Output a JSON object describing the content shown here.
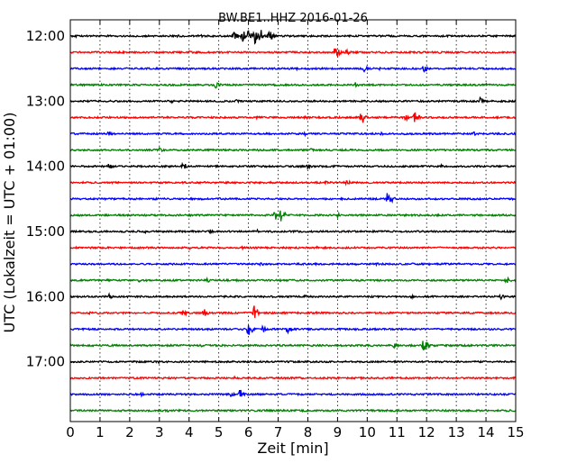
{
  "chart_data": {
    "type": "line",
    "title": "BW.BE1..HHZ 2016-01-26",
    "xlabel": "Zeit  [min]",
    "ylabel": "UTC (Lokalzeit = UTC + 01:00)",
    "xlim": [
      0,
      15
    ],
    "x_ticks": [
      "0",
      "1",
      "2",
      "3",
      "4",
      "5",
      "6",
      "7",
      "8",
      "9",
      "10",
      "11",
      "12",
      "13",
      "14",
      "15"
    ],
    "y_tick_labels": [
      "12:00",
      "13:00",
      "14:00",
      "15:00",
      "16:00",
      "17:00"
    ],
    "grid": true,
    "trace_colors": [
      "#000000",
      "#ff0000",
      "#0000ff",
      "#008000"
    ],
    "traces": [
      {
        "start": "12:00",
        "events": [
          [
            5.5,
            7
          ],
          [
            5.8,
            8
          ],
          [
            6.0,
            9
          ],
          [
            6.2,
            10
          ],
          [
            6.4,
            9
          ],
          [
            6.7,
            7
          ],
          [
            4.3,
            4
          ],
          [
            3.6,
            2
          ],
          [
            0.2,
            2
          ]
        ]
      },
      {
        "start": "12:15",
        "events": [
          [
            8.9,
            7
          ],
          [
            9.3,
            4
          ],
          [
            9.0,
            5
          ],
          [
            4.0,
            2
          ],
          [
            12.4,
            2
          ]
        ]
      },
      {
        "start": "12:30",
        "events": [
          [
            9.9,
            4
          ],
          [
            11.9,
            5
          ],
          [
            7.6,
            2
          ],
          [
            10.4,
            2
          ]
        ]
      },
      {
        "start": "12:45",
        "events": [
          [
            4.9,
            4
          ],
          [
            9.6,
            3
          ],
          [
            14.0,
            2
          ]
        ]
      },
      {
        "start": "13:00",
        "events": [
          [
            13.8,
            4
          ],
          [
            5.6,
            2
          ],
          [
            3.4,
            2
          ]
        ]
      },
      {
        "start": "13:15",
        "events": [
          [
            9.8,
            11
          ],
          [
            11.6,
            8
          ],
          [
            11.3,
            4
          ],
          [
            6.3,
            3
          ],
          [
            7.9,
            2
          ]
        ]
      },
      {
        "start": "13:30",
        "events": [
          [
            1.3,
            3
          ],
          [
            10.5,
            3
          ],
          [
            13.6,
            3
          ],
          [
            7.9,
            2
          ]
        ]
      },
      {
        "start": "13:45",
        "events": [
          [
            3.0,
            3
          ],
          [
            8.1,
            2
          ],
          [
            6.3,
            2
          ]
        ]
      },
      {
        "start": "14:00",
        "events": [
          [
            1.3,
            4
          ],
          [
            3.8,
            5
          ],
          [
            8.0,
            3
          ],
          [
            12.5,
            2
          ]
        ]
      },
      {
        "start": "14:15",
        "events": [
          [
            9.3,
            4
          ],
          [
            4.5,
            2
          ],
          [
            8.6,
            2
          ]
        ]
      },
      {
        "start": "14:30",
        "events": [
          [
            10.7,
            11
          ],
          [
            8.6,
            2
          ],
          [
            5.0,
            2
          ]
        ]
      },
      {
        "start": "14:45",
        "events": [
          [
            7.1,
            9
          ],
          [
            6.9,
            6
          ],
          [
            9.0,
            3
          ],
          [
            1.1,
            2
          ]
        ]
      },
      {
        "start": "15:00",
        "events": [
          [
            4.7,
            3
          ],
          [
            2.5,
            2
          ],
          [
            6.3,
            2
          ]
        ]
      },
      {
        "start": "15:15",
        "events": [
          [
            4.0,
            2
          ],
          [
            5.8,
            2
          ],
          [
            8.3,
            2
          ]
        ]
      },
      {
        "start": "15:30",
        "events": [
          [
            6.4,
            3
          ],
          [
            10.3,
            2
          ]
        ]
      },
      {
        "start": "15:45",
        "events": [
          [
            14.7,
            4
          ],
          [
            4.6,
            3
          ],
          [
            2.3,
            2
          ],
          [
            1.2,
            2
          ]
        ]
      },
      {
        "start": "16:00",
        "events": [
          [
            14.5,
            3
          ],
          [
            1.3,
            3
          ],
          [
            7.9,
            2
          ],
          [
            11.5,
            2
          ]
        ]
      },
      {
        "start": "16:15",
        "events": [
          [
            6.2,
            9
          ],
          [
            4.5,
            5
          ],
          [
            3.8,
            4
          ],
          [
            0.6,
            2
          ]
        ]
      },
      {
        "start": "16:30",
        "events": [
          [
            6.0,
            9
          ],
          [
            6.5,
            7
          ],
          [
            7.3,
            5
          ],
          [
            9.6,
            2
          ]
        ]
      },
      {
        "start": "16:45",
        "events": [
          [
            11.9,
            10
          ],
          [
            10.9,
            4
          ],
          [
            4.4,
            2
          ]
        ]
      },
      {
        "start": "17:00",
        "events": [
          [
            3.0,
            2
          ],
          [
            8.1,
            2
          ]
        ]
      },
      {
        "start": "17:15",
        "events": [
          [
            5.5,
            2
          ],
          [
            9.0,
            2
          ]
        ]
      },
      {
        "start": "17:30",
        "events": [
          [
            5.7,
            7
          ],
          [
            5.4,
            3
          ],
          [
            2.4,
            2
          ]
        ]
      },
      {
        "start": "17:45",
        "events": [
          [
            3.3,
            2
          ],
          [
            11.0,
            2
          ]
        ]
      }
    ]
  }
}
